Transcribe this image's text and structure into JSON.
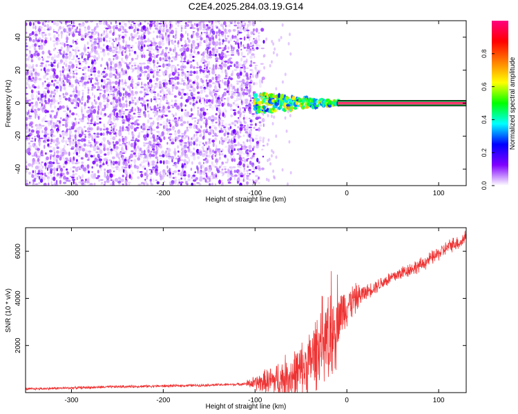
{
  "title": "C2E4.2025.284.03.19.G14",
  "chart_data": [
    {
      "type": "heatmap",
      "xlabel": "Height of straight line (km)",
      "ylabel": "Frequency (Hz)",
      "xlim": [
        -350,
        130
      ],
      "ylim": [
        -50,
        50
      ],
      "xticks": [
        -300,
        -200,
        -100,
        0,
        100
      ],
      "yticks": [
        -40,
        -20,
        0,
        20,
        40
      ],
      "grid": false,
      "signal_band": {
        "frequency": 0,
        "x_start": -100,
        "x_end": 130
      },
      "noise_region": {
        "x_start": -350,
        "x_end": -90
      },
      "colorbar": {
        "label": "Normalized spectral amplitude",
        "range": [
          0,
          1
        ],
        "ticks": [
          "0.0",
          "0.2",
          "0.4",
          "0.6",
          "0.8"
        ],
        "colormap": [
          "#FFFFFF",
          "#8000FF",
          "#0000FF",
          "#00FFFF",
          "#00FF00",
          "#FFFF00",
          "#FF8000",
          "#FF0000",
          "#FF0080"
        ]
      }
    },
    {
      "type": "line",
      "xlabel": "Height of straight line (km)",
      "ylabel": "SNR (10 * v/v)",
      "xlim": [
        -350,
        130
      ],
      "ylim": [
        0,
        7000
      ],
      "xticks": [
        -300,
        -200,
        -100,
        0,
        100
      ],
      "yticks": [
        2000,
        4000,
        6000
      ],
      "grid": false,
      "color": "#EE3333",
      "series": [
        {
          "name": "SNR",
          "x": [
            -350,
            -300,
            -250,
            -200,
            -150,
            -120,
            -100,
            -80,
            -60,
            -50,
            -40,
            -30,
            -25,
            -20,
            -15,
            -10,
            0,
            10,
            20,
            40,
            60,
            80,
            100,
            115,
            125,
            130
          ],
          "y": [
            150,
            200,
            250,
            280,
            320,
            350,
            400,
            500,
            700,
            900,
            1300,
            2000,
            2500,
            1800,
            2600,
            3200,
            3700,
            4000,
            4250,
            4700,
            5100,
            5400,
            5900,
            6300,
            6400,
            6700
          ]
        }
      ]
    }
  ]
}
